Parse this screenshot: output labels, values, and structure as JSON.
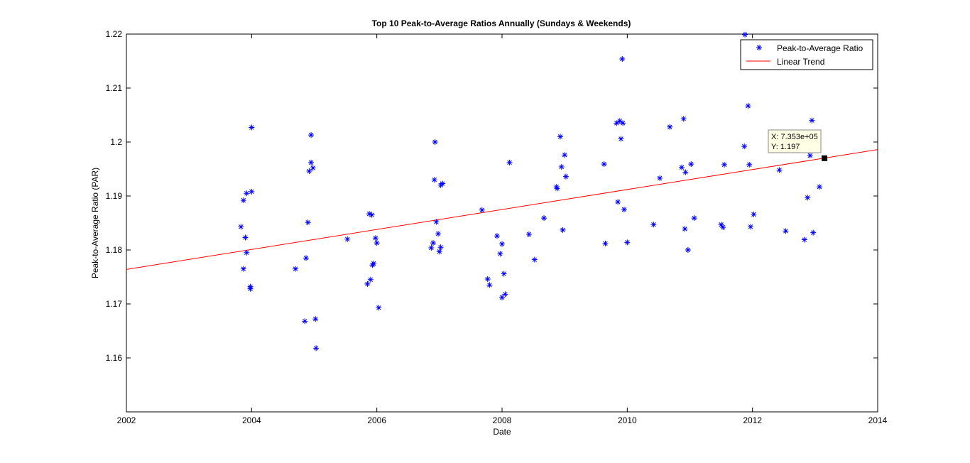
{
  "chart_data": {
    "type": "scatter",
    "title": "Top 10 Peak-to-Average Ratios Annually (Sundays & Weekends)",
    "xlabel": "Date",
    "ylabel": "Peak-to-Average Ratio (PAR)",
    "xlim": [
      2002,
      2014
    ],
    "ylim": [
      1.15,
      1.22
    ],
    "xticks": [
      "2002",
      "2004",
      "2006",
      "2008",
      "2010",
      "2012",
      "2014"
    ],
    "yticks": [
      "1.16",
      "1.17",
      "1.18",
      "1.19",
      "1.2",
      "1.21",
      "1.22"
    ],
    "grid": false,
    "legend_position": "top-right",
    "colors": {
      "points": "#0000ff",
      "trend": "#ff0000"
    },
    "series": [
      {
        "name": "Peak-to-Average Ratio",
        "marker": "asterisk",
        "points": [
          [
            2003.83,
            1.1843
          ],
          [
            2003.87,
            1.1765
          ],
          [
            2003.87,
            1.1892
          ],
          [
            2003.9,
            1.1823
          ],
          [
            2003.92,
            1.1905
          ],
          [
            2003.92,
            1.1795
          ],
          [
            2003.98,
            1.1732
          ],
          [
            2003.98,
            1.1728
          ],
          [
            2004.0,
            1.1908
          ],
          [
            2004.0,
            1.2027
          ],
          [
            2004.7,
            1.1765
          ],
          [
            2004.85,
            1.1668
          ],
          [
            2004.87,
            1.1785
          ],
          [
            2004.9,
            1.1851
          ],
          [
            2004.92,
            1.1946
          ],
          [
            2004.95,
            1.1962
          ],
          [
            2004.95,
            1.2013
          ],
          [
            2004.98,
            1.1952
          ],
          [
            2005.02,
            1.1672
          ],
          [
            2005.03,
            1.1618
          ],
          [
            2005.53,
            1.182
          ],
          [
            2005.85,
            1.1737
          ],
          [
            2005.88,
            1.1867
          ],
          [
            2005.9,
            1.1745
          ],
          [
            2005.92,
            1.1865
          ],
          [
            2005.93,
            1.1772
          ],
          [
            2005.95,
            1.1775
          ],
          [
            2005.98,
            1.1822
          ],
          [
            2006.0,
            1.1813
          ],
          [
            2006.03,
            1.1693
          ],
          [
            2006.87,
            1.1804
          ],
          [
            2006.9,
            1.1813
          ],
          [
            2006.92,
            1.193
          ],
          [
            2006.93,
            1.2
          ],
          [
            2006.95,
            1.1852
          ],
          [
            2006.98,
            1.183
          ],
          [
            2007.0,
            1.1797
          ],
          [
            2007.02,
            1.1805
          ],
          [
            2007.02,
            1.192
          ],
          [
            2007.05,
            1.1923
          ],
          [
            2007.68,
            1.1874
          ],
          [
            2007.77,
            1.1746
          ],
          [
            2007.8,
            1.1735
          ],
          [
            2007.92,
            1.1826
          ],
          [
            2007.97,
            1.1793
          ],
          [
            2008.0,
            1.1811
          ],
          [
            2008.0,
            1.1712
          ],
          [
            2008.03,
            1.1756
          ],
          [
            2008.05,
            1.1718
          ],
          [
            2008.12,
            1.1962
          ],
          [
            2008.43,
            1.1829
          ],
          [
            2008.52,
            1.1782
          ],
          [
            2008.67,
            1.1859
          ],
          [
            2008.87,
            1.1917
          ],
          [
            2008.88,
            1.1914
          ],
          [
            2008.93,
            1.201
          ],
          [
            2008.95,
            1.1954
          ],
          [
            2008.97,
            1.1837
          ],
          [
            2009.0,
            1.1976
          ],
          [
            2009.02,
            1.1936
          ],
          [
            2009.63,
            1.1959
          ],
          [
            2009.65,
            1.1812
          ],
          [
            2009.83,
            1.2035
          ],
          [
            2009.85,
            1.1889
          ],
          [
            2009.88,
            1.2039
          ],
          [
            2009.9,
            1.2006
          ],
          [
            2009.92,
            1.2154
          ],
          [
            2009.93,
            1.2035
          ],
          [
            2009.95,
            1.1875
          ],
          [
            2010.0,
            1.1814
          ],
          [
            2010.42,
            1.1847
          ],
          [
            2010.52,
            1.1933
          ],
          [
            2010.68,
            1.2028
          ],
          [
            2010.87,
            1.1953
          ],
          [
            2010.9,
            1.2043
          ],
          [
            2010.92,
            1.1839
          ],
          [
            2010.93,
            1.1944
          ],
          [
            2010.97,
            1.18
          ],
          [
            2011.02,
            1.1959
          ],
          [
            2011.07,
            1.1859
          ],
          [
            2011.5,
            1.1847
          ],
          [
            2011.53,
            1.1842
          ],
          [
            2011.55,
            1.1958
          ],
          [
            2011.87,
            1.1992
          ],
          [
            2011.88,
            1.2199
          ],
          [
            2011.93,
            1.2067
          ],
          [
            2011.95,
            1.1958
          ],
          [
            2011.97,
            1.1843
          ],
          [
            2012.02,
            1.1866
          ],
          [
            2012.43,
            1.1948
          ],
          [
            2012.53,
            1.1835
          ],
          [
            2012.83,
            1.1819
          ],
          [
            2012.88,
            1.1897
          ],
          [
            2012.92,
            1.1975
          ],
          [
            2012.95,
            1.204
          ],
          [
            2012.97,
            1.1832
          ],
          [
            2013.07,
            1.1917
          ]
        ]
      },
      {
        "name": "Linear Trend",
        "type": "line",
        "points": [
          [
            2002,
            1.1764
          ],
          [
            2014,
            1.1986
          ]
        ]
      }
    ],
    "datatip": {
      "x_label": "X: 7.353e+05",
      "y_label": "Y: 1.197",
      "x": 2013.15,
      "y": 1.197
    }
  }
}
